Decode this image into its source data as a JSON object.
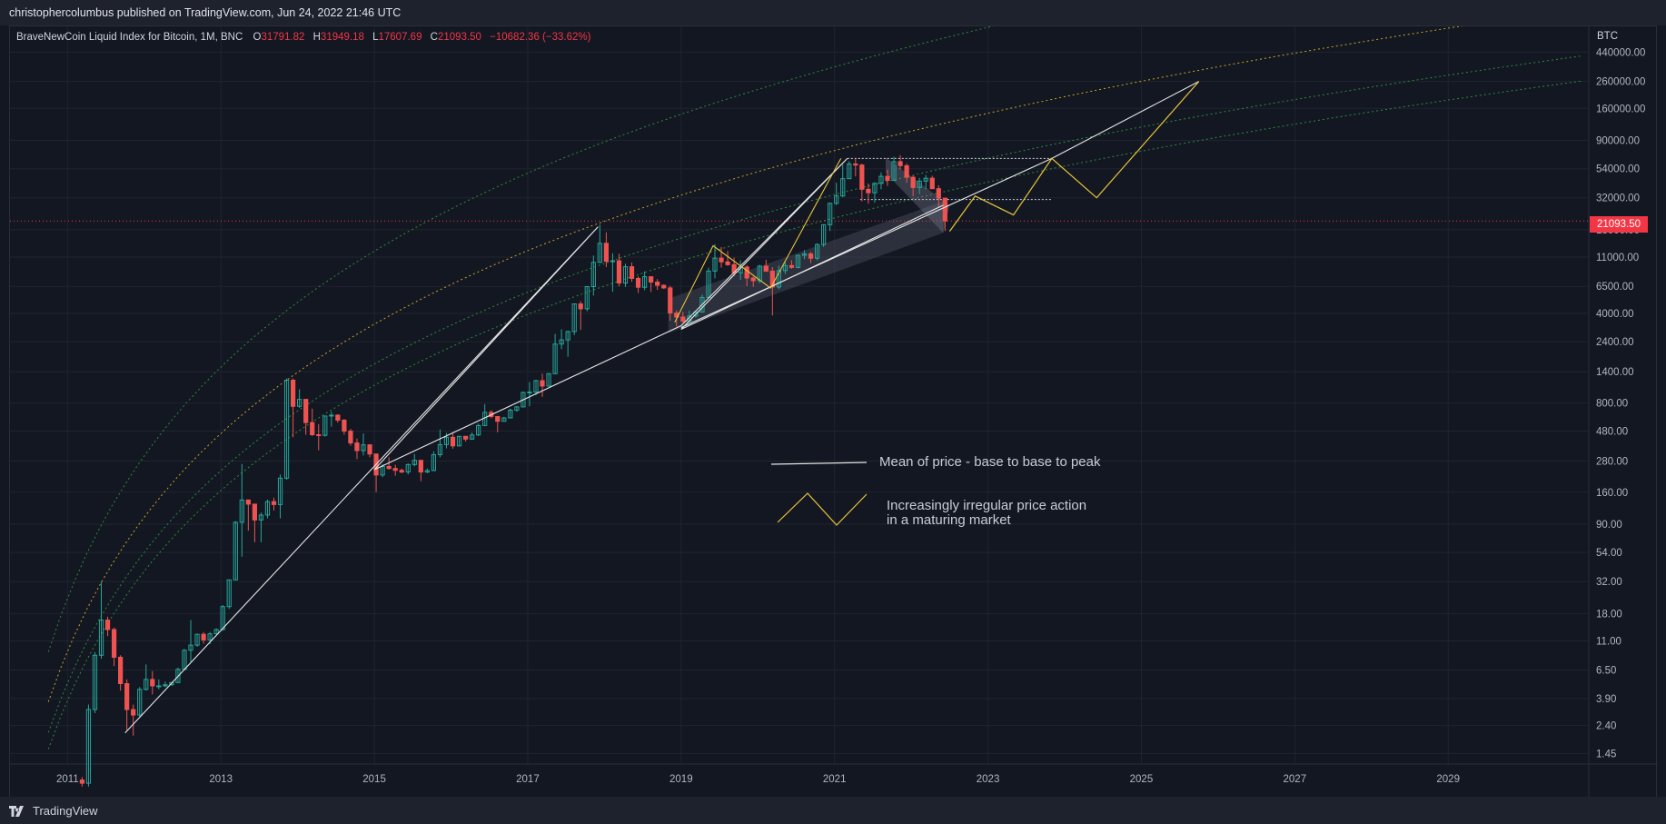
{
  "header": {
    "publish_line": "christophercolumbus published on TradingView.com, Jun 24, 2022 21:46 UTC"
  },
  "legend": {
    "symbol": "BraveNewCoin Liquid Index for Bitcoin, 1M, BNC",
    "open_k": "O",
    "open": "31791.82",
    "high_k": "H",
    "high": "31949.18",
    "low_k": "L",
    "low": "17607.69",
    "close_k": "C",
    "close": "21093.50",
    "change": "−10682.36 (−33.62%)"
  },
  "price_axis": {
    "unit": "BTC",
    "last_price": "21093.50"
  },
  "annotations": {
    "white_line_label": "Mean of price - base to base to peak",
    "yellow_line_label_1": "Increasingly irregular price action",
    "yellow_line_label_2": "in a maturing market"
  },
  "footer": {
    "brand": "TradingView"
  },
  "colors": {
    "background": "#131722",
    "grid": "#1f2430",
    "up": "#26a69a",
    "down": "#ef5350",
    "green_band": "#2e8b3d",
    "yellow_band": "#c9a227",
    "white_line": "#e6e6e6",
    "yellow_line": "#e8c53a",
    "last_price_line": "#f23645"
  },
  "chart_data": {
    "type": "candlestick",
    "title": "BraveNewCoin Liquid Index for Bitcoin, 1M, BNC",
    "scale": "log",
    "ylim": [
      1.2,
      700000
    ],
    "xlim": [
      "2010-04",
      "2030-11"
    ],
    "y_ticks": [
      440000,
      260000,
      160000,
      90000,
      54000,
      32000,
      18000,
      11000,
      6500,
      4000,
      2400,
      1400,
      800,
      480,
      280,
      160,
      90,
      54,
      32,
      18,
      11,
      6.5,
      3.9,
      2.4,
      1.45
    ],
    "y_tick_labels": [
      "440000.00",
      "260000.00",
      "160000.00",
      "90000.00",
      "54000.00",
      "32000.00",
      "18000.00",
      "11000.00",
      "6500.00",
      "4000.00",
      "2400.00",
      "1400.00",
      "800.00",
      "480.00",
      "280.00",
      "160.00",
      "90.00",
      "54.00",
      "32.00",
      "18.00",
      "11.00",
      "6.50",
      "3.90",
      "2.40",
      "1.45"
    ],
    "x_ticks": [
      "2011",
      "2013",
      "2015",
      "2017",
      "2019",
      "2021",
      "2023",
      "2025",
      "2027",
      "2029"
    ],
    "last_price": 21093.5,
    "candles": [
      [
        "2011-03",
        0.9,
        0.95,
        0.8,
        0.85
      ],
      [
        "2011-04",
        0.85,
        3.5,
        0.8,
        3.2
      ],
      [
        "2011-05",
        3.2,
        9,
        3,
        8.5
      ],
      [
        "2011-06",
        8.5,
        32,
        8,
        16
      ],
      [
        "2011-07",
        16,
        17,
        12,
        13.5
      ],
      [
        "2011-08",
        13.5,
        14,
        7,
        8.2
      ],
      [
        "2011-09",
        8.2,
        8.5,
        4.5,
        5.1
      ],
      [
        "2011-10",
        5.1,
        5.5,
        2.2,
        3.2
      ],
      [
        "2011-11",
        3.2,
        3.5,
        2,
        2.9
      ],
      [
        "2011-12",
        2.9,
        4.8,
        2.8,
        4.6
      ],
      [
        "2012-01",
        4.6,
        7.2,
        4.5,
        5.5
      ],
      [
        "2012-02",
        5.5,
        6.4,
        4.2,
        4.9
      ],
      [
        "2012-03",
        4.9,
        5.5,
        4.6,
        4.9
      ],
      [
        "2012-04",
        4.9,
        5.3,
        4.8,
        5.0
      ],
      [
        "2012-05",
        5.0,
        5.2,
        4.9,
        5.2
      ],
      [
        "2012-06",
        5.2,
        6.8,
        5.2,
        6.6
      ],
      [
        "2012-07",
        6.6,
        9.5,
        6.5,
        9.3
      ],
      [
        "2012-08",
        9.3,
        16,
        7.5,
        10.2
      ],
      [
        "2012-09",
        10.2,
        12.5,
        9.9,
        12.4
      ],
      [
        "2012-10",
        12.4,
        12.9,
        10.5,
        11.2
      ],
      [
        "2012-11",
        11.2,
        12.9,
        10.4,
        12.5
      ],
      [
        "2012-12",
        12.5,
        13.8,
        12.5,
        13.5
      ],
      [
        "2013-01",
        13.5,
        21,
        13.2,
        20.4
      ],
      [
        "2013-02",
        20.4,
        33,
        19.6,
        33
      ],
      [
        "2013-03",
        33,
        95,
        33,
        93
      ],
      [
        "2013-04",
        93,
        266,
        50,
        139
      ],
      [
        "2013-05",
        139,
        140,
        80,
        129
      ],
      [
        "2013-06",
        129,
        130,
        65,
        97
      ],
      [
        "2013-07",
        97,
        111,
        65,
        106
      ],
      [
        "2013-08",
        106,
        140,
        100,
        135
      ],
      [
        "2013-09",
        135,
        145,
        115,
        128
      ],
      [
        "2013-10",
        128,
        220,
        100,
        206
      ],
      [
        "2013-11",
        206,
        1240,
        200,
        1200
      ],
      [
        "2013-12",
        1200,
        1240,
        430,
        750
      ],
      [
        "2014-01",
        750,
        1020,
        730,
        850
      ],
      [
        "2014-02",
        850,
        850,
        450,
        560
      ],
      [
        "2014-03",
        560,
        720,
        440,
        450
      ],
      [
        "2014-04",
        450,
        545,
        340,
        445
      ],
      [
        "2014-05",
        445,
        630,
        435,
        630
      ],
      [
        "2014-06",
        630,
        680,
        520,
        640
      ],
      [
        "2014-07",
        640,
        650,
        560,
        585
      ],
      [
        "2014-08",
        585,
        595,
        450,
        480
      ],
      [
        "2014-09",
        480,
        500,
        370,
        388
      ],
      [
        "2014-10",
        388,
        420,
        290,
        338
      ],
      [
        "2014-11",
        338,
        460,
        310,
        375
      ],
      [
        "2014-12",
        375,
        380,
        300,
        318
      ],
      [
        "2015-01",
        318,
        320,
        160,
        218
      ],
      [
        "2015-02",
        218,
        265,
        210,
        254
      ],
      [
        "2015-03",
        254,
        300,
        240,
        245
      ],
      [
        "2015-04",
        245,
        262,
        215,
        237
      ],
      [
        "2015-05",
        237,
        245,
        225,
        230
      ],
      [
        "2015-06",
        230,
        268,
        220,
        263
      ],
      [
        "2015-07",
        263,
        318,
        255,
        284
      ],
      [
        "2015-08",
        284,
        285,
        195,
        230
      ],
      [
        "2015-09",
        230,
        245,
        225,
        236
      ],
      [
        "2015-10",
        236,
        334,
        235,
        314
      ],
      [
        "2015-11",
        314,
        495,
        300,
        377
      ],
      [
        "2015-12",
        377,
        465,
        352,
        430
      ],
      [
        "2016-01",
        430,
        465,
        350,
        368
      ],
      [
        "2016-02",
        368,
        440,
        365,
        437
      ],
      [
        "2016-03",
        437,
        440,
        398,
        416
      ],
      [
        "2016-04",
        416,
        468,
        410,
        448
      ],
      [
        "2016-05",
        448,
        550,
        440,
        531
      ],
      [
        "2016-06",
        531,
        780,
        525,
        673
      ],
      [
        "2016-07",
        673,
        700,
        605,
        624
      ],
      [
        "2016-08",
        624,
        630,
        470,
        573
      ],
      [
        "2016-09",
        573,
        620,
        570,
        609
      ],
      [
        "2016-10",
        609,
        720,
        605,
        700
      ],
      [
        "2016-11",
        700,
        755,
        680,
        742
      ],
      [
        "2016-12",
        742,
        980,
        740,
        963
      ],
      [
        "2017-01",
        963,
        1160,
        750,
        970
      ],
      [
        "2017-02",
        970,
        1210,
        920,
        1190
      ],
      [
        "2017-03",
        1190,
        1350,
        890,
        1080
      ],
      [
        "2017-04",
        1080,
        1350,
        1070,
        1350
      ],
      [
        "2017-05",
        1350,
        2760,
        1340,
        2300
      ],
      [
        "2017-06",
        2300,
        3000,
        2100,
        2480
      ],
      [
        "2017-07",
        2480,
        2930,
        1830,
        2880
      ],
      [
        "2017-08",
        2880,
        4770,
        2700,
        4740
      ],
      [
        "2017-09",
        4740,
        4970,
        2970,
        4340
      ],
      [
        "2017-10",
        4340,
        6470,
        4150,
        6470
      ],
      [
        "2017-11",
        6470,
        11300,
        5500,
        10000
      ],
      [
        "2017-12",
        10000,
        19800,
        10000,
        14100
      ],
      [
        "2018-01",
        14100,
        17200,
        9200,
        10200
      ],
      [
        "2018-02",
        10200,
        11800,
        5900,
        10300
      ],
      [
        "2018-03",
        10300,
        11700,
        6500,
        6900
      ],
      [
        "2018-04",
        6900,
        9750,
        6430,
        9250
      ],
      [
        "2018-05",
        9250,
        10000,
        7050,
        7500
      ],
      [
        "2018-06",
        7500,
        7770,
        5780,
        6390
      ],
      [
        "2018-07",
        6390,
        8500,
        6070,
        7730
      ],
      [
        "2018-08",
        7730,
        7760,
        5880,
        7020
      ],
      [
        "2018-09",
        7020,
        7400,
        6100,
        6620
      ],
      [
        "2018-10",
        6620,
        6750,
        6200,
        6320
      ],
      [
        "2018-11",
        6320,
        6550,
        3500,
        4020
      ],
      [
        "2018-12",
        4020,
        4230,
        3150,
        3740
      ],
      [
        "2019-01",
        3740,
        4100,
        3400,
        3460
      ],
      [
        "2019-02",
        3460,
        4200,
        3380,
        3810
      ],
      [
        "2019-03",
        3810,
        4120,
        3700,
        4100
      ],
      [
        "2019-04",
        4100,
        5600,
        4080,
        5320
      ],
      [
        "2019-05",
        5320,
        9100,
        5300,
        8560
      ],
      [
        "2019-06",
        8560,
        13900,
        7500,
        10800
      ],
      [
        "2019-07",
        10800,
        13200,
        9100,
        10100
      ],
      [
        "2019-08",
        10100,
        12300,
        9400,
        9600
      ],
      [
        "2019-09",
        9600,
        10900,
        7800,
        8300
      ],
      [
        "2019-10",
        8300,
        10400,
        7300,
        9200
      ],
      [
        "2019-11",
        9200,
        9500,
        6520,
        7550
      ],
      [
        "2019-12",
        7550,
        7750,
        6440,
        7190
      ],
      [
        "2020-01",
        7190,
        9580,
        6870,
        9350
      ],
      [
        "2020-02",
        9350,
        10500,
        8450,
        8550
      ],
      [
        "2020-03",
        8550,
        9180,
        3850,
        6420
      ],
      [
        "2020-04",
        6420,
        9450,
        6160,
        8630
      ],
      [
        "2020-05",
        8630,
        10080,
        8100,
        9450
      ],
      [
        "2020-06",
        9450,
        10400,
        8900,
        9140
      ],
      [
        "2020-07",
        9140,
        11450,
        8980,
        11350
      ],
      [
        "2020-08",
        11350,
        12470,
        10600,
        11650
      ],
      [
        "2020-09",
        11650,
        12080,
        9880,
        10780
      ],
      [
        "2020-10",
        10780,
        14100,
        10400,
        13800
      ],
      [
        "2020-11",
        13800,
        19850,
        13200,
        19700
      ],
      [
        "2020-12",
        19700,
        29300,
        17600,
        28950
      ],
      [
        "2021-01",
        28950,
        41950,
        28100,
        33100
      ],
      [
        "2021-02",
        33100,
        58350,
        32300,
        45150
      ],
      [
        "2021-03",
        45150,
        61800,
        44950,
        58800
      ],
      [
        "2021-04",
        58800,
        64800,
        47000,
        57700
      ],
      [
        "2021-05",
        57700,
        59000,
        30000,
        37300
      ],
      [
        "2021-06",
        37300,
        41300,
        28800,
        35000
      ],
      [
        "2021-07",
        35000,
        42200,
        29300,
        41500
      ],
      [
        "2021-08",
        41500,
        50500,
        37300,
        47100
      ],
      [
        "2021-09",
        47100,
        52900,
        39600,
        43800
      ],
      [
        "2021-10",
        43800,
        67000,
        43300,
        61300
      ],
      [
        "2021-11",
        61300,
        69000,
        53300,
        57000
      ],
      [
        "2021-12",
        57000,
        59100,
        42000,
        46300
      ],
      [
        "2022-01",
        46300,
        47900,
        32900,
        38500
      ],
      [
        "2022-02",
        38500,
        45800,
        34300,
        43200
      ],
      [
        "2022-03",
        43200,
        48200,
        37200,
        45500
      ],
      [
        "2022-04",
        45500,
        47500,
        37700,
        37700
      ],
      [
        "2022-05",
        37700,
        40000,
        26700,
        31800
      ],
      [
        "2022-06",
        31791.82,
        31949.18,
        17607.69,
        21093.5
      ]
    ],
    "white_lines": [
      [
        [
          "2011-10",
          2.1
        ],
        [
          "2017-12",
          19000
        ],
        [
          "2015-01",
          240
        ],
        [
          "2019-01",
          3200
        ],
        [
          "2021-03",
          65000
        ],
        [
          "2019-01",
          3000
        ],
        [
          "2022-06",
          28000
        ]
      ],
      [
        [
          "2019-01",
          3100
        ],
        [
          "2023-11",
          65000
        ],
        [
          "2025-10",
          260000
        ]
      ]
    ],
    "yellow_projection": [
      [
        "2022-07",
        17500
      ],
      [
        "2022-11",
        33000
      ],
      [
        "2023-05",
        23500
      ],
      [
        "2023-11",
        65000
      ],
      [
        "2024-06",
        32000
      ],
      [
        "2025-10",
        260000
      ]
    ],
    "yellow_early": [
      [
        "2018-12",
        3400
      ],
      [
        "2019-06",
        13500
      ],
      [
        "2020-03",
        6300
      ],
      [
        "2021-02",
        65000
      ]
    ],
    "dotted_levels": [
      {
        "from": "2021-03",
        "to": "2023-11",
        "y": 65000
      },
      {
        "from": "2021-05",
        "to": "2023-11",
        "y": 31000
      }
    ]
  }
}
